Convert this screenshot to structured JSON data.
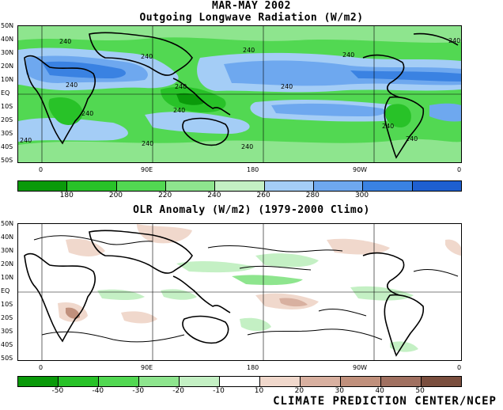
{
  "header": {
    "period": "MAR-MAY 2002",
    "title": "Outgoing Longwave Radiation (W/m2)"
  },
  "panel2": {
    "title": "OLR Anomaly (W/m2) (1979-2000 Climo)"
  },
  "lat_labels": [
    "50N",
    "40N",
    "30N",
    "20N",
    "10N",
    "EQ",
    "10S",
    "20S",
    "30S",
    "40S",
    "50S"
  ],
  "lon_labels": [
    "0",
    "90E",
    "180",
    "90W",
    "0"
  ],
  "contour_labels_top": [
    "240",
    "240",
    "240",
    "240",
    "240",
    "240",
    "240",
    "240",
    "240",
    "240",
    "240",
    "240",
    "240",
    "240",
    "240"
  ],
  "colorbar_top": {
    "colors": [
      "#0a9a0a",
      "#28c228",
      "#52d852",
      "#8ee58e",
      "#c4f0c4",
      "#a4cdf6",
      "#6ea8ef",
      "#3a82e2",
      "#1e5fd0"
    ],
    "labels": [
      "180",
      "200",
      "220",
      "240",
      "260",
      "280",
      "300"
    ]
  },
  "colorbar_bottom": {
    "colors": [
      "#0a9a0a",
      "#28c228",
      "#52d852",
      "#8ee58e",
      "#c4f0c4",
      "#ffffff",
      "#f0d8cc",
      "#d8b0a0",
      "#c0907c",
      "#a07060",
      "#7a4e3e"
    ],
    "labels": [
      "-50",
      "-40",
      "-30",
      "-20",
      "-10",
      "10",
      "20",
      "30",
      "40",
      "50"
    ]
  },
  "credit": "CLIMATE PREDICTION CENTER/NCEP"
}
